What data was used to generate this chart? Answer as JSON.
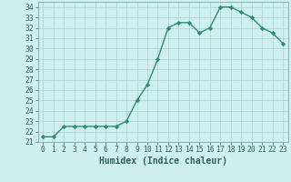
{
  "x": [
    0,
    1,
    2,
    3,
    4,
    5,
    6,
    7,
    8,
    9,
    10,
    11,
    12,
    13,
    14,
    15,
    16,
    17,
    18,
    19,
    20,
    21,
    22,
    23
  ],
  "y": [
    21.5,
    21.5,
    22.5,
    22.5,
    22.5,
    22.5,
    22.5,
    22.5,
    23.0,
    25.0,
    26.5,
    29.0,
    32.0,
    32.5,
    32.5,
    31.5,
    32.0,
    34.0,
    34.0,
    33.5,
    33.0,
    32.0,
    31.5,
    30.5
  ],
  "xlabel": "Humidex (Indice chaleur)",
  "xlim": [
    -0.5,
    23.5
  ],
  "ylim": [
    21,
    34.5
  ],
  "yticks": [
    21,
    22,
    23,
    24,
    25,
    26,
    27,
    28,
    29,
    30,
    31,
    32,
    33,
    34
  ],
  "xticks": [
    0,
    1,
    2,
    3,
    4,
    5,
    6,
    7,
    8,
    9,
    10,
    11,
    12,
    13,
    14,
    15,
    16,
    17,
    18,
    19,
    20,
    21,
    22,
    23
  ],
  "line_color": "#2d8b72",
  "marker": "D",
  "marker_size": 2.2,
  "bg_color": "#d0f0f0",
  "grid_color": "#aacfcf",
  "xlabel_fontsize": 7,
  "tick_fontsize": 5.8,
  "line_width": 1.0
}
